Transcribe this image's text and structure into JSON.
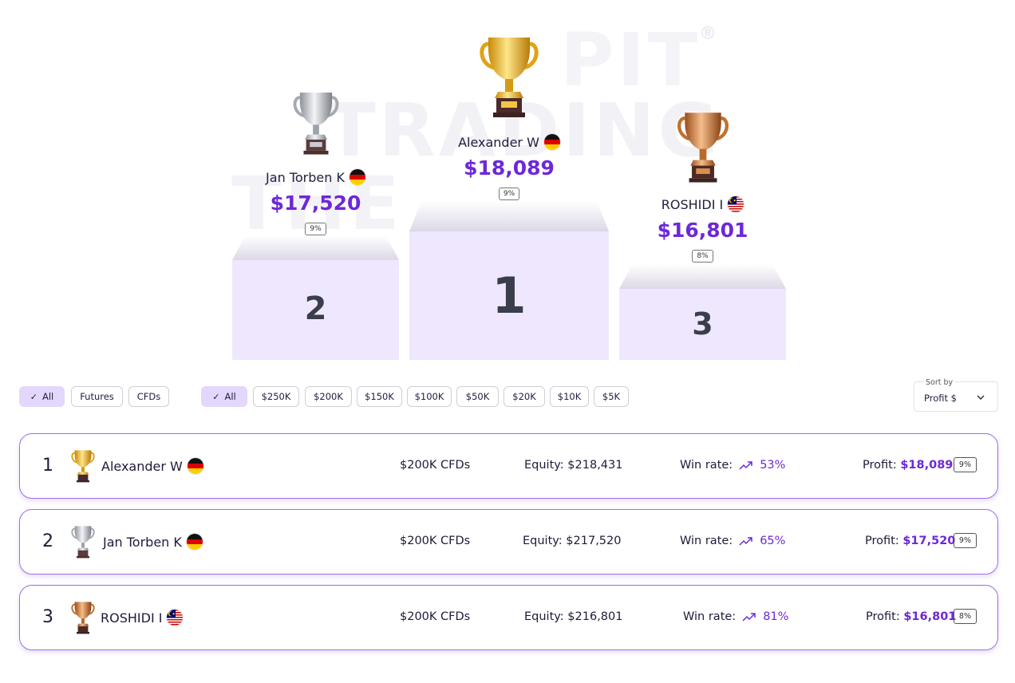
{
  "watermark": {
    "line1": "PIT",
    "reg": "®",
    "line2": "TRADING",
    "line3": "THE"
  },
  "podium": {
    "first": {
      "rank": "1",
      "name": "Alexander W",
      "country": "germany",
      "profit": "$18,089",
      "pct": "9%"
    },
    "second": {
      "rank": "2",
      "name": "Jan Torben K",
      "country": "germany",
      "profit": "$17,520",
      "pct": "9%"
    },
    "third": {
      "rank": "3",
      "name": "ROSHIDI I",
      "country": "malaysia",
      "profit": "$16,801",
      "pct": "8%"
    }
  },
  "filters": {
    "type": [
      {
        "label": "All",
        "active": true
      },
      {
        "label": "Futures",
        "active": false
      },
      {
        "label": "CFDs",
        "active": false
      }
    ],
    "size": [
      {
        "label": "All",
        "active": true
      },
      {
        "label": "$250K",
        "active": false
      },
      {
        "label": "$200K",
        "active": false
      },
      {
        "label": "$150K",
        "active": false
      },
      {
        "label": "$100K",
        "active": false
      },
      {
        "label": "$50K",
        "active": false
      },
      {
        "label": "$20K",
        "active": false
      },
      {
        "label": "$10K",
        "active": false
      },
      {
        "label": "$5K",
        "active": false
      }
    ]
  },
  "sort": {
    "label": "Sort by",
    "value": "Profit $"
  },
  "leaderboard": [
    {
      "rank": "1",
      "name": "Alexander W",
      "country": "germany",
      "trophy": "gold-trophy-icon",
      "plan": "$200K CFDs",
      "equity_label": "Equity:",
      "equity": "$218,431",
      "winrate_label": "Win rate:",
      "winrate": "53%",
      "profit_label": "Profit:",
      "profit": "$18,089",
      "pct": "9%"
    },
    {
      "rank": "2",
      "name": "Jan Torben K",
      "country": "germany",
      "trophy": "silver-trophy-icon",
      "plan": "$200K CFDs",
      "equity_label": "Equity:",
      "equity": "$217,520",
      "winrate_label": "Win rate:",
      "winrate": "65%",
      "profit_label": "Profit:",
      "profit": "$17,520",
      "pct": "9%"
    },
    {
      "rank": "3",
      "name": "ROSHIDI I",
      "country": "malaysia",
      "trophy": "bronze-trophy-icon",
      "plan": "$200K CFDs",
      "equity_label": "Equity:",
      "equity": "$216,801",
      "winrate_label": "Win rate:",
      "winrate": "81%",
      "profit_label": "Profit:",
      "profit": "$16,801",
      "pct": "8%"
    }
  ],
  "colors": {
    "accent": "#6d28d9",
    "podium": "#efe7fe",
    "chip_active": "#e3d7fd",
    "row_border": "#a06cf0",
    "gold": "#e8b21a",
    "silver": "#b9bcc4",
    "bronze": "#c8773a"
  }
}
